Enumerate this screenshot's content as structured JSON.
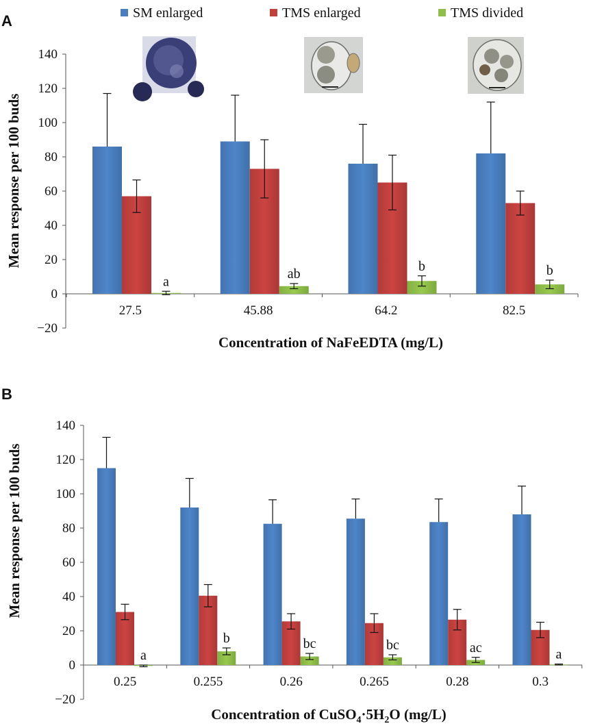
{
  "colors": {
    "sm_enlarged": "#4a7ebf",
    "tms_enlarged": "#c0403e",
    "tms_divided": "#8fbf4a"
  },
  "legend": {
    "items": [
      {
        "label": "SM enlarged",
        "color": "#4a7ebf"
      },
      {
        "label": "TMS enlarged",
        "color": "#c0403e"
      },
      {
        "label": "TMS divided",
        "color": "#8fbf4a"
      }
    ]
  },
  "chart_data": [
    {
      "panel": "A",
      "type": "bar",
      "xlabel": "Concentration of NaFeEDTA (mg/L)",
      "ylabel": "Mean response per 100 buds",
      "ylim": [
        -20,
        140
      ],
      "yticks": [
        -20,
        0,
        20,
        40,
        60,
        80,
        100,
        120,
        140
      ],
      "categories": [
        "27.5",
        "45.88",
        "64.2",
        "82.5"
      ],
      "series": [
        {
          "name": "SM enlarged",
          "values": [
            86,
            89,
            76,
            82
          ],
          "errors": [
            31,
            27,
            23,
            30
          ]
        },
        {
          "name": "TMS enlarged",
          "values": [
            57,
            73,
            65,
            53
          ],
          "errors": [
            9.5,
            17,
            16,
            7
          ]
        },
        {
          "name": "TMS divided",
          "values": [
            0.5,
            4.5,
            7.5,
            5.5
          ],
          "errors": [
            1,
            1.5,
            3,
            2.5
          ]
        }
      ],
      "annotations": [
        "a",
        "ab",
        "b",
        "b"
      ],
      "inset_images": 3
    },
    {
      "panel": "B",
      "type": "bar",
      "xlabel": "Concentration of CuSO4·5H2O (mg/L)",
      "ylabel": "Mean response per 100 buds",
      "ylim": [
        -20,
        140
      ],
      "yticks": [
        -20,
        0,
        20,
        40,
        60,
        80,
        100,
        120,
        140
      ],
      "categories": [
        "0.25",
        "0.255",
        "0.26",
        "0.265",
        "0.28",
        "0.3"
      ],
      "series": [
        {
          "name": "SM enlarged",
          "values": [
            115,
            92,
            82.5,
            85.5,
            83.5,
            88
          ],
          "errors": [
            18,
            17,
            14,
            11.5,
            13.5,
            16.5
          ]
        },
        {
          "name": "TMS enlarged",
          "values": [
            31,
            40.5,
            25.5,
            24.5,
            26.5,
            20.5
          ],
          "errors": [
            4.5,
            6.5,
            4.5,
            5.5,
            6,
            4.5
          ]
        },
        {
          "name": "TMS divided",
          "values": [
            -0.5,
            8,
            5,
            4.5,
            3,
            0.3
          ],
          "errors": [
            0.5,
            2,
            1.8,
            1.5,
            1.5,
            0.3
          ]
        }
      ],
      "annotations": [
        "a",
        "b",
        "bc",
        "bc",
        "ac",
        "a"
      ]
    }
  ],
  "panelA": {
    "letter": "A",
    "ylabel": "Mean response per 100 buds",
    "xlabel": "Concentration of NaFeEDTA (mg/L)"
  },
  "panelB": {
    "letter": "B",
    "ylabel": "Mean response per 100 buds",
    "xlabel_pre": "Concentration of CuSO",
    "xlabel_sub1": "4",
    "xlabel_mid": "·5H",
    "xlabel_sub2": "2",
    "xlabel_post": "O (mg/L)"
  }
}
